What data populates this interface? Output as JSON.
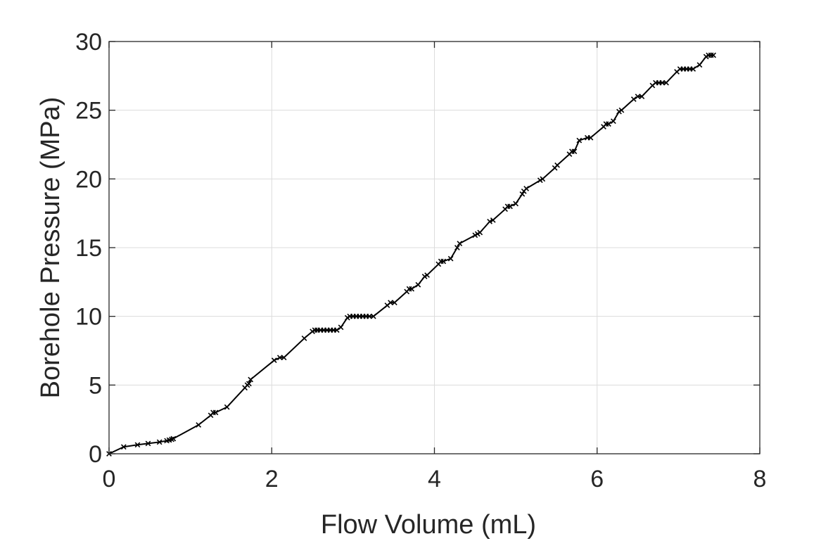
{
  "chart_data": {
    "type": "line",
    "title": "",
    "xlabel": "Flow Volume (mL)",
    "ylabel": "Borehole Pressure (MPa)",
    "xlim": [
      0,
      8
    ],
    "ylim": [
      0,
      30
    ],
    "xticks": [
      0,
      2,
      4,
      6,
      8
    ],
    "yticks": [
      0,
      5,
      10,
      15,
      20,
      25,
      30
    ],
    "grid": true,
    "marker": "x",
    "colors": {
      "line": "#000000",
      "text": "#262626",
      "grid": "#dcdcdc"
    },
    "series": [
      {
        "name": "Borehole Pressure",
        "x": [
          0,
          0.18,
          0.35,
          0.48,
          0.62,
          0.71,
          0.74,
          0.77,
          0.79,
          1.1,
          1.25,
          1.28,
          1.31,
          1.45,
          1.67,
          1.7,
          1.72,
          1.74,
          2.03,
          2.1,
          2.15,
          2.4,
          2.5,
          2.53,
          2.56,
          2.6,
          2.64,
          2.68,
          2.72,
          2.76,
          2.8,
          2.85,
          2.93,
          2.96,
          3.0,
          3.04,
          3.08,
          3.12,
          3.16,
          3.2,
          3.25,
          3.42,
          3.46,
          3.51,
          3.66,
          3.69,
          3.72,
          3.8,
          3.88,
          3.91,
          4.05,
          4.08,
          4.11,
          4.2,
          4.28,
          4.31,
          4.5,
          4.53,
          4.56,
          4.68,
          4.72,
          4.87,
          4.9,
          4.93,
          5.0,
          5.08,
          5.1,
          5.13,
          5.3,
          5.33,
          5.48,
          5.51,
          5.66,
          5.69,
          5.72,
          5.78,
          5.88,
          5.92,
          6.08,
          6.11,
          6.14,
          6.2,
          6.27,
          6.3,
          6.45,
          6.5,
          6.55,
          6.68,
          6.72,
          6.76,
          6.8,
          6.85,
          6.98,
          7.02,
          7.06,
          7.1,
          7.14,
          7.18,
          7.26,
          7.34,
          7.37,
          7.4,
          7.43
        ],
        "y": [
          0,
          0.5,
          0.65,
          0.75,
          0.85,
          0.95,
          1.0,
          1.05,
          1.1,
          2.1,
          2.8,
          3.0,
          3.0,
          3.4,
          4.8,
          5.0,
          5.1,
          5.4,
          6.8,
          7.0,
          7.0,
          8.4,
          8.9,
          9.0,
          9.0,
          9.0,
          9.0,
          9.0,
          9.0,
          9.0,
          9.0,
          9.2,
          9.9,
          10.0,
          10.0,
          10.0,
          10.0,
          10.0,
          10.0,
          10.0,
          10.0,
          10.8,
          11.0,
          11.0,
          11.8,
          12.0,
          12.0,
          12.3,
          12.9,
          13.0,
          13.8,
          14.0,
          14.0,
          14.2,
          15.0,
          15.3,
          15.9,
          16.0,
          16.1,
          16.9,
          17.0,
          17.8,
          18.0,
          18.0,
          18.2,
          18.9,
          19.1,
          19.3,
          19.9,
          20.0,
          20.8,
          21.0,
          21.8,
          22.0,
          22.0,
          22.8,
          23.0,
          23.0,
          23.8,
          24.0,
          24.0,
          24.2,
          24.9,
          25.0,
          25.8,
          26.0,
          26.0,
          26.8,
          27.0,
          27.0,
          27.0,
          27.0,
          27.8,
          28.0,
          28.0,
          28.0,
          28.0,
          28.0,
          28.3,
          28.9,
          29.0,
          29.0,
          29.0
        ]
      }
    ]
  }
}
